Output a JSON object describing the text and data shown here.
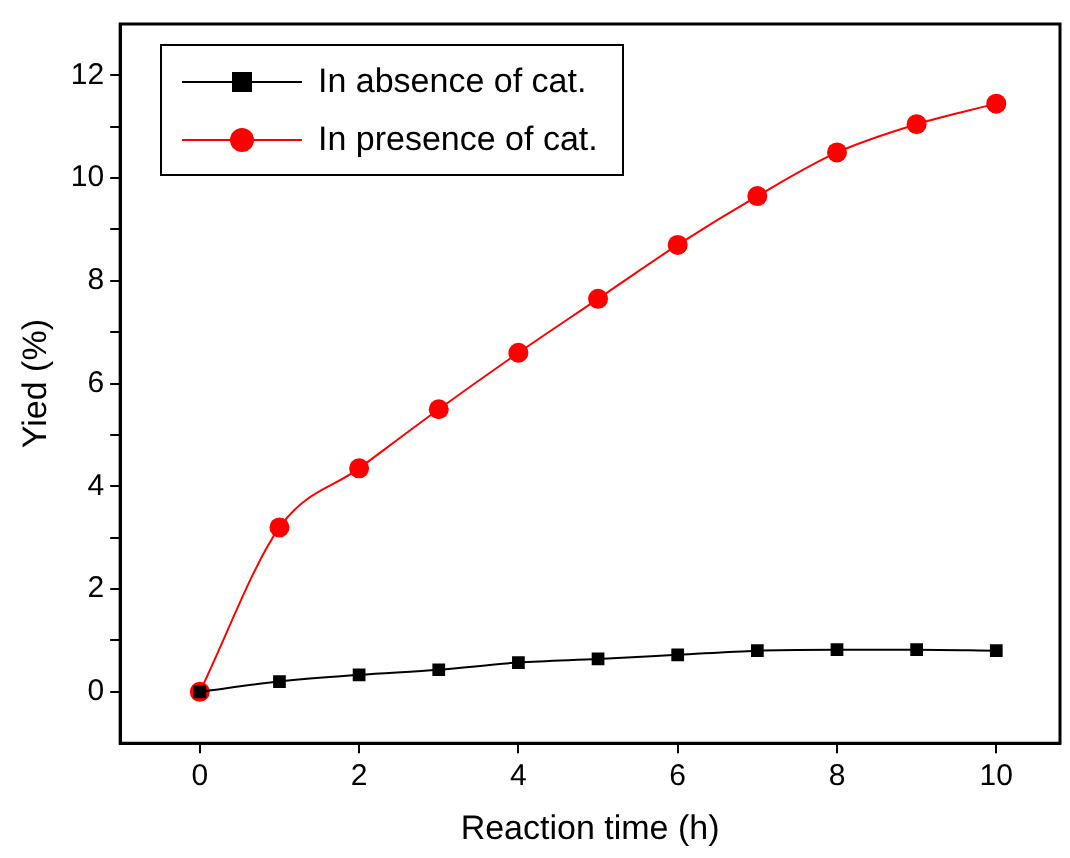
{
  "chart_data": {
    "type": "line",
    "xlabel": "Reaction time (h)",
    "ylabel": "Yied (%)",
    "x": [
      0,
      1,
      2,
      3,
      4,
      5,
      6,
      7,
      8,
      9,
      10
    ],
    "series": [
      {
        "name": "In absence of cat.",
        "color": "#000000",
        "marker": "square",
        "values": [
          0,
          0.2,
          0.33,
          0.43,
          0.57,
          0.64,
          0.72,
          0.8,
          0.82,
          0.82,
          0.8
        ]
      },
      {
        "name": "In presence of cat.",
        "color": "#ff0000",
        "marker": "circle",
        "values": [
          0,
          3.2,
          4.35,
          5.5,
          6.6,
          7.65,
          8.7,
          9.65,
          10.5,
          11.05,
          11.45
        ]
      }
    ],
    "xlim": [
      -1,
      10.8
    ],
    "xticks": [
      0,
      2,
      4,
      6,
      8,
      10
    ],
    "ylim": [
      -1,
      13
    ],
    "yticks": [
      0,
      {
        "value": 1,
        "label": null
      },
      2,
      {
        "value": 3,
        "label": null
      },
      4,
      {
        "value": 5,
        "label": null
      },
      6,
      {
        "value": 7,
        "label": null
      },
      8,
      {
        "value": 9,
        "label": null
      },
      10,
      {
        "value": 11,
        "label": null
      },
      12
    ],
    "grid": false,
    "legend": "top left",
    "line_style": "solid"
  }
}
